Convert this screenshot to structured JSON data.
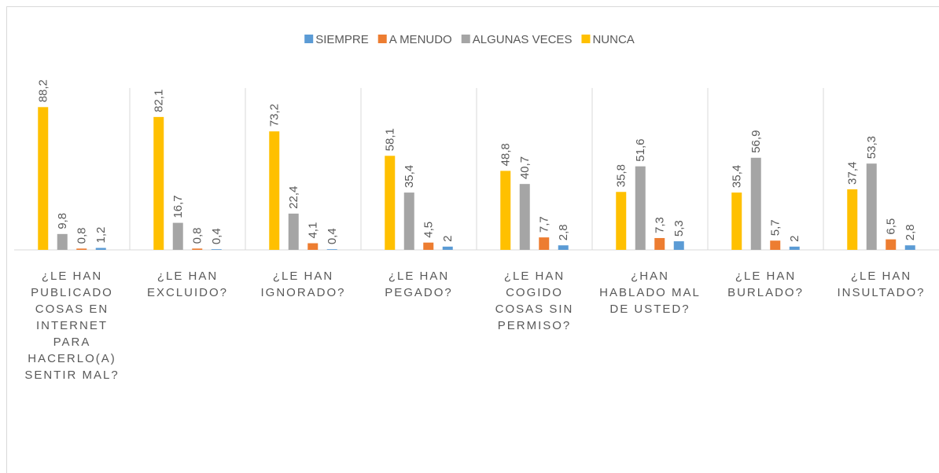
{
  "chart_data": {
    "type": "bar",
    "categories": [
      "¿LE HAN PUBLICADO COSAS EN INTERNET PARA HACERLO(A) SENTIR MAL?",
      "¿LE HAN EXCLUIDO?",
      "¿LE HAN IGNORADO?",
      "¿LE HAN PEGADO?",
      "¿LE HAN COGIDO COSAS SIN PERMISO?",
      "¿HAN HABLADO MAL DE USTED?",
      "¿LE HAN BURLADO?",
      "¿LE HAN INSULTADO?"
    ],
    "series": [
      {
        "name": "SIEMPRE",
        "color": "#5b9bd5",
        "values": [
          1.2,
          0.4,
          0.4,
          2,
          2.8,
          5.3,
          2,
          2.8
        ],
        "value_labels": [
          "1,2",
          "0,4",
          "0,4",
          "2",
          "2,8",
          "5,3",
          "2",
          "2,8"
        ]
      },
      {
        "name": "A MENUDO",
        "color": "#ed7d31",
        "values": [
          0.8,
          0.8,
          4.1,
          4.5,
          7.7,
          7.3,
          5.7,
          6.5
        ],
        "value_labels": [
          "0,8",
          "0,8",
          "4,1",
          "4,5",
          "7,7",
          "7,3",
          "5,7",
          "6,5"
        ]
      },
      {
        "name": "ALGUNAS VECES",
        "color": "#a5a5a5",
        "values": [
          9.8,
          16.7,
          22.4,
          35.4,
          40.7,
          51.6,
          56.9,
          53.3
        ],
        "value_labels": [
          "9,8",
          "16,7",
          "22,4",
          "35,4",
          "40,7",
          "51,6",
          "56,9",
          "53,3"
        ]
      },
      {
        "name": "NUNCA",
        "color": "#ffc000",
        "values": [
          88.2,
          82.1,
          73.2,
          58.1,
          48.8,
          35.8,
          35.4,
          37.4
        ],
        "value_labels": [
          "88,2",
          "82,1",
          "73,2",
          "58,1",
          "48,8",
          "35,8",
          "35,4",
          "37,4"
        ]
      }
    ],
    "ylim": [
      0,
      100
    ]
  }
}
